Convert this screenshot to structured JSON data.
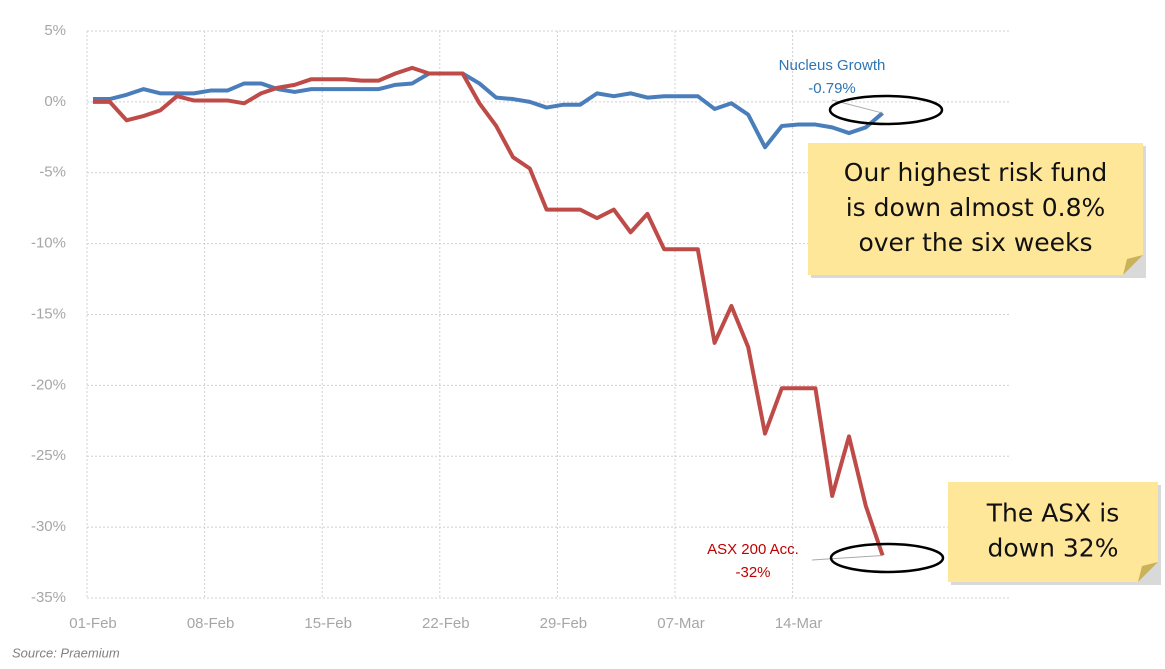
{
  "chart_data": {
    "type": "line",
    "categories": [
      "01-Feb",
      null,
      null,
      null,
      null,
      null,
      null,
      "08-Feb",
      null,
      null,
      null,
      null,
      null,
      null,
      "15-Feb",
      null,
      null,
      null,
      null,
      null,
      null,
      "22-Feb",
      null,
      null,
      null,
      null,
      null,
      null,
      "29-Feb",
      null,
      null,
      null,
      null,
      null,
      null,
      "07-Mar",
      null,
      null,
      null,
      null,
      null,
      null,
      "14-Mar",
      null,
      null,
      null,
      null,
      null
    ],
    "series": [
      {
        "name": "Nucleus Growth",
        "color": "#4a7ebb",
        "label_color": "#2e75b6",
        "values": [
          0.2,
          0.2,
          0.5,
          0.9,
          0.6,
          0.6,
          0.6,
          0.8,
          0.8,
          1.3,
          1.3,
          0.9,
          0.7,
          0.9,
          0.9,
          0.9,
          0.9,
          0.9,
          1.2,
          1.3,
          2.0,
          2.0,
          2.0,
          1.3,
          0.3,
          0.2,
          0,
          -0.4,
          -0.2,
          -0.2,
          0.6,
          0.4,
          0.6,
          0.3,
          0.4,
          0.4,
          0.4,
          -0.5,
          -0.1,
          -0.9,
          -3.2,
          -1.7,
          -1.6,
          -1.6,
          -1.8,
          -2.2,
          -1.8,
          -0.79
        ],
        "value_labels": [
          null,
          null,
          null,
          null,
          null,
          null,
          null,
          null,
          null,
          null,
          null,
          null,
          null,
          null,
          null,
          null,
          null,
          null,
          null,
          null,
          null,
          null,
          null,
          null,
          null,
          null,
          null,
          null,
          null,
          null,
          null,
          null,
          null,
          null,
          null,
          null,
          null,
          null,
          null,
          null,
          null,
          null,
          null,
          null,
          null,
          null,
          null,
          "-0.79%"
        ]
      },
      {
        "name": "ASX 200 Acc.",
        "color": "#be4b48",
        "label_color": "#c00000",
        "values": [
          0,
          0,
          -1.3,
          -1.0,
          -0.6,
          0.4,
          0.1,
          0.1,
          0.1,
          -0.1,
          0.6,
          1.0,
          1.2,
          1.6,
          1.6,
          1.6,
          1.5,
          1.5,
          2.0,
          2.4,
          2.0,
          2.0,
          2.0,
          -0.1,
          -1.7,
          -3.9,
          -4.7,
          -7.6,
          -7.6,
          -7.6,
          -8.2,
          -7.6,
          -9.2,
          -7.9,
          -10.4,
          -10.4,
          -10.4,
          -17.0,
          -14.4,
          -17.3,
          -23.4,
          -20.2,
          -20.2,
          -20.2,
          -27.8,
          -23.6,
          -28.5,
          -32
        ],
        "value_labels": [
          null,
          null,
          null,
          null,
          null,
          null,
          null,
          null,
          null,
          null,
          null,
          null,
          null,
          null,
          null,
          null,
          null,
          null,
          null,
          null,
          null,
          null,
          null,
          null,
          null,
          null,
          null,
          null,
          null,
          null,
          null,
          null,
          null,
          null,
          null,
          null,
          null,
          null,
          null,
          null,
          null,
          null,
          null,
          null,
          null,
          null,
          null,
          "-32%"
        ]
      }
    ],
    "ylim": [
      -35,
      5
    ],
    "yticks": [
      {
        "value": 5,
        "label": "5%"
      },
      {
        "value": 0,
        "label": "0%"
      },
      {
        "value": -5,
        "label": "-5%"
      },
      {
        "value": -10,
        "label": "-10%"
      },
      {
        "value": -15,
        "label": "-15%"
      },
      {
        "value": -20,
        "label": "-20%"
      },
      {
        "value": -25,
        "label": "-25%"
      },
      {
        "value": -30,
        "label": "-30%"
      },
      {
        "value": -35,
        "label": "-35%"
      }
    ],
    "grid": true,
    "notes": [
      {
        "lines": [
          "Our highest risk fund",
          "is down almost 0.8%",
          "over the six weeks"
        ]
      },
      {
        "lines": [
          "The ASX is",
          "down 32%"
        ]
      }
    ],
    "source": "Source: Praemium"
  }
}
